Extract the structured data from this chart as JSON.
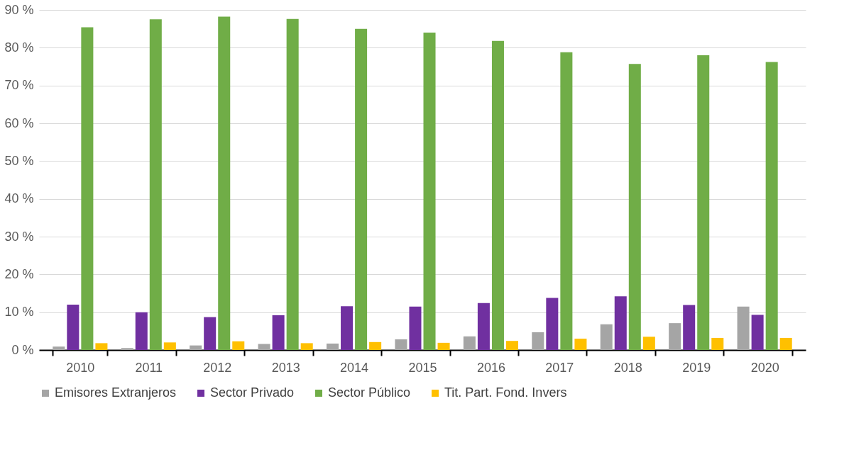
{
  "chart_data": {
    "type": "bar",
    "categories": [
      "2010",
      "2011",
      "2012",
      "2013",
      "2014",
      "2015",
      "2016",
      "2017",
      "2018",
      "2019",
      "2020"
    ],
    "series": [
      {
        "name": "Emisores Extranjeros",
        "color": "#a5a5a5",
        "values": [
          0.9,
          0.5,
          1.2,
          1.6,
          1.7,
          2.8,
          3.6,
          4.7,
          6.8,
          7.1,
          11.5
        ]
      },
      {
        "name": "Sector Privado",
        "color": "#7030a0",
        "values": [
          12.0,
          10.0,
          8.7,
          9.2,
          11.6,
          11.5,
          12.4,
          13.8,
          14.2,
          11.9,
          9.3
        ]
      },
      {
        "name": "Sector Público",
        "color": "#70ad47",
        "values": [
          85.4,
          87.5,
          88.2,
          87.6,
          85.0,
          84.0,
          81.8,
          78.8,
          75.7,
          78.0,
          76.2
        ]
      },
      {
        "name": "Tit. Part. Fond. Invers",
        "color": "#ffc000",
        "values": [
          1.8,
          2.0,
          2.3,
          1.8,
          2.1,
          1.9,
          2.4,
          3.0,
          3.5,
          3.2,
          3.2
        ]
      }
    ],
    "ylim": [
      0,
      90
    ],
    "yticks": [
      {
        "value": 0,
        "label": "0 %"
      },
      {
        "value": 10,
        "label": "10 %"
      },
      {
        "value": 20,
        "label": "20 %"
      },
      {
        "value": 30,
        "label": "30 %"
      },
      {
        "value": 40,
        "label": "40 %"
      },
      {
        "value": 50,
        "label": "50 %"
      },
      {
        "value": 60,
        "label": "60 %"
      },
      {
        "value": 70,
        "label": "70 %"
      },
      {
        "value": 80,
        "label": "80 %"
      },
      {
        "value": 90,
        "label": "90 %"
      }
    ],
    "grid": "y",
    "legend": "bottom"
  }
}
